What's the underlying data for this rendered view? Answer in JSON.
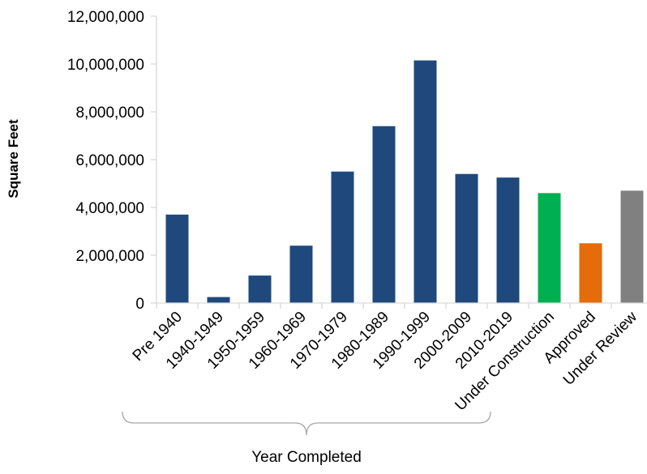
{
  "chart_data": {
    "type": "bar",
    "ylabel": "Square Feet",
    "xlabel": "",
    "ylim": [
      0,
      12000000
    ],
    "yticks": [
      0,
      2000000,
      4000000,
      6000000,
      8000000,
      10000000,
      12000000
    ],
    "ytick_labels": [
      "0",
      "2,000,000",
      "4,000,000",
      "6,000,000",
      "8,000,000",
      "10,000,000",
      "12,000,000"
    ],
    "categories": [
      "Pre 1940",
      "1940-1949",
      "1950-1959",
      "1960-1969",
      "1970-1979",
      "1980-1989",
      "1990-1999",
      "2000-2009",
      "2010-2019",
      "Under Construction",
      "Approved",
      "Under Review"
    ],
    "values": [
      3700000,
      250000,
      1150000,
      2400000,
      5500000,
      7400000,
      10150000,
      5400000,
      5250000,
      4600000,
      2500000,
      4700000
    ],
    "bar_colors": [
      "#1f497d",
      "#1f497d",
      "#1f497d",
      "#1f497d",
      "#1f497d",
      "#1f497d",
      "#1f497d",
      "#1f497d",
      "#1f497d",
      "#00b050",
      "#e46c0a",
      "#808080"
    ],
    "grid": false,
    "legend": "none",
    "group_annotation": {
      "label": "Year Completed",
      "from_category": "Pre 1940",
      "to_category": "2000-2009"
    }
  }
}
